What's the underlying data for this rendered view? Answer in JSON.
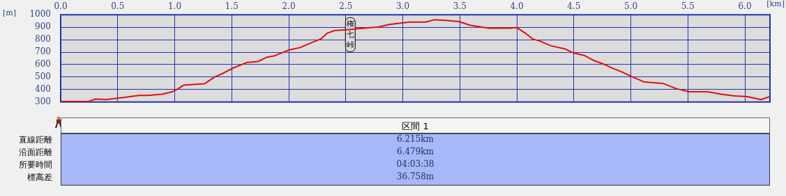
{
  "chart_data": [
    {
      "type": "line",
      "xlabel": "[km]",
      "ylabel": "[m]",
      "color": "#dd1111",
      "grid": true,
      "xlim": [
        0,
        6.22
      ],
      "ylim": [
        300,
        1000
      ],
      "xticks": [
        {
          "value": 0,
          "label": "0.0"
        },
        {
          "value": 0.5,
          "label": "0.5"
        },
        {
          "value": 1,
          "label": "1.0"
        },
        {
          "value": 1.5,
          "label": "1.5"
        },
        {
          "value": 2,
          "label": "2.0"
        },
        {
          "value": 2.5,
          "label": "2.5"
        },
        {
          "value": 3,
          "label": "3.0"
        },
        {
          "value": 3.5,
          "label": "3.5"
        },
        {
          "value": 4,
          "label": "4.0"
        },
        {
          "value": 4.5,
          "label": "4.5"
        },
        {
          "value": 5,
          "label": "5.0"
        },
        {
          "value": 5.5,
          "label": "5.5"
        },
        {
          "value": 6,
          "label": "6.0"
        }
      ],
      "yticks": [
        300,
        400,
        500,
        600,
        700,
        800,
        900,
        1000
      ],
      "annotations": [
        {
          "text": "権七峠",
          "x": 2.54,
          "y": 882
        }
      ],
      "x": [
        0,
        0.245,
        0.306,
        0.4,
        0.53,
        0.69,
        0.77,
        0.89,
        0.98,
        1.04,
        1.08,
        1.26,
        1.35,
        1.43,
        1.51,
        1.63,
        1.73,
        1.81,
        1.87,
        2.0,
        2.1,
        2.2,
        2.28,
        2.34,
        2.4,
        2.55,
        2.79,
        2.88,
        3.06,
        3.2,
        3.28,
        3.37,
        3.49,
        3.59,
        3.75,
        3.94,
        4.0,
        4.08,
        4.14,
        4.2,
        4.3,
        4.42,
        4.5,
        4.59,
        4.67,
        4.77,
        4.85,
        4.93,
        5.02,
        5.12,
        5.28,
        5.4,
        5.51,
        5.67,
        5.79,
        5.91,
        6.02,
        6.14,
        6.22
      ],
      "values": [
        305,
        305,
        324,
        320,
        334,
        353,
        353,
        363,
        383,
        412,
        436,
        446,
        500,
        533,
        572,
        616,
        625,
        660,
        669,
        717,
        737,
        776,
        805,
        853,
        873,
        883,
        902,
        922,
        941,
        941,
        960,
        955,
        945,
        916,
        892,
        892,
        897,
        849,
        805,
        790,
        751,
        727,
        693,
        674,
        635,
        601,
        567,
        538,
        499,
        460,
        450,
        407,
        383,
        383,
        363,
        349,
        344,
        320,
        344
      ]
    },
    {
      "type": "other",
      "title": "区間 1",
      "annotations": [
        "直線距離",
        "6.215km",
        "沿面距離",
        "6.479km",
        "所要時間",
        "04:03:38",
        "標高差",
        "36.758m"
      ]
    }
  ]
}
